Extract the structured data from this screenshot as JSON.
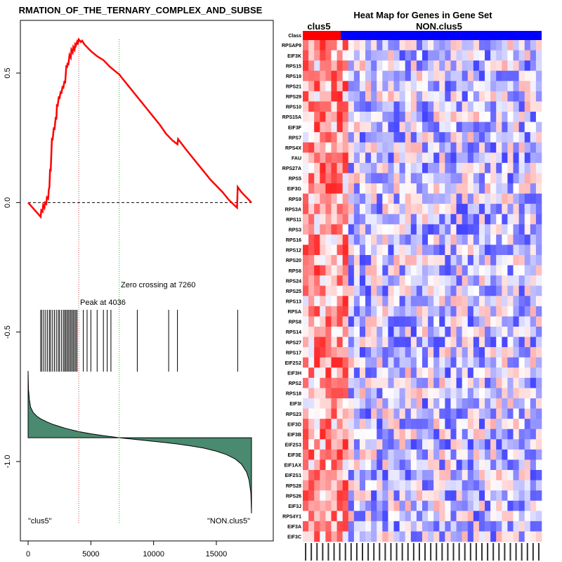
{
  "chart_data": [
    {
      "type": "line",
      "name": "enrichment-plot",
      "title": "RMATION_OF_THE_TERNARY_COMPLEX_AND_SUBSE",
      "xlabel": "",
      "ylabel": "",
      "xlim": [
        0,
        17800
      ],
      "ylim": [
        -1.25,
        0.66
      ],
      "xticks": [
        0,
        5000,
        10000,
        15000
      ],
      "xtick_labels": [
        "0",
        "5000",
        "10000",
        "15000"
      ],
      "yticks": [
        0.5,
        0.0,
        -0.5,
        -1.0
      ],
      "ytick_labels": [
        "0.5",
        "0.0",
        "-0.5",
        "-1.0"
      ],
      "enrichment_curve": {
        "x": [
          0,
          1000,
          1050,
          1150,
          1200,
          1300,
          1350,
          1450,
          1500,
          1600,
          1650,
          1700,
          1750,
          1800,
          1900,
          1950,
          2050,
          2100,
          2200,
          2250,
          2300,
          2350,
          2450,
          2500,
          2600,
          2650,
          2750,
          2800,
          2900,
          2950,
          3050,
          3100,
          3150,
          3200,
          3300,
          3400,
          3450,
          3550,
          3600,
          3700,
          3750,
          3800,
          3900,
          3950,
          4036,
          4200,
          4300,
          4500,
          4700,
          5000,
          5500,
          6000,
          6500,
          7000,
          7260,
          7500,
          8000,
          8500,
          9000,
          9500,
          10000,
          10500,
          11000,
          11500,
          11900,
          11950,
          12500,
          13000,
          13500,
          14000,
          14500,
          15000,
          15500,
          16000,
          16650,
          16700,
          17000,
          17800
        ],
        "y": [
          0.0,
          -0.055,
          -0.03,
          -0.035,
          -0.01,
          -0.02,
          0.0,
          -0.005,
          0.02,
          0.015,
          0.05,
          0.06,
          0.13,
          0.12,
          0.25,
          0.24,
          0.29,
          0.28,
          0.33,
          0.32,
          0.38,
          0.37,
          0.41,
          0.4,
          0.43,
          0.42,
          0.45,
          0.44,
          0.47,
          0.46,
          0.53,
          0.52,
          0.54,
          0.53,
          0.57,
          0.56,
          0.59,
          0.58,
          0.6,
          0.59,
          0.61,
          0.605,
          0.62,
          0.61,
          0.63,
          0.62,
          0.625,
          0.61,
          0.6,
          0.585,
          0.565,
          0.55,
          0.525,
          0.505,
          0.495,
          0.48,
          0.45,
          0.42,
          0.39,
          0.36,
          0.33,
          0.3,
          0.265,
          0.24,
          0.225,
          0.245,
          0.21,
          0.18,
          0.15,
          0.12,
          0.09,
          0.065,
          0.04,
          0.01,
          -0.02,
          0.06,
          0.04,
          0.0
        ],
        "color": "#ff0000"
      },
      "peak": {
        "x": 4036,
        "label": "Peak at 4036",
        "color": "#cc4444"
      },
      "zero_crossing": {
        "x": 7260,
        "label": "Zero crossing at 7260",
        "color": "#22bb22"
      },
      "hit_positions": [
        1000,
        1100,
        1250,
        1400,
        1550,
        1700,
        1800,
        1950,
        2100,
        2250,
        2400,
        2500,
        2650,
        2800,
        2900,
        3000,
        3100,
        3200,
        3300,
        3400,
        3500,
        3600,
        3700,
        3800,
        3900,
        4400,
        4700,
        5000,
        5500,
        6000,
        6300,
        6600,
        8700,
        11200,
        11900,
        16700
      ],
      "ranked_metric": {
        "x": [
          0,
          30,
          100,
          200,
          400,
          700,
          1000,
          1500,
          2000,
          3000,
          4000,
          5000,
          6000,
          7260,
          8000,
          9000,
          10000,
          11000,
          12000,
          13000,
          14000,
          15000,
          15800,
          16500,
          17000,
          17400,
          17600,
          17750,
          17800
        ],
        "y": [
          -0.65,
          -0.72,
          -0.76,
          -0.79,
          -0.81,
          -0.825,
          -0.835,
          -0.847,
          -0.857,
          -0.872,
          -0.884,
          -0.893,
          -0.9,
          -0.908,
          -0.912,
          -0.917,
          -0.922,
          -0.927,
          -0.933,
          -0.94,
          -0.948,
          -0.96,
          -0.973,
          -0.99,
          -1.01,
          -1.04,
          -1.07,
          -1.12,
          -1.2
        ],
        "baseline": -0.908,
        "color": "#4a8a70"
      },
      "left_label": "\"clus5\"",
      "right_label": "\"NON.clus5\""
    },
    {
      "type": "heatmap",
      "name": "gene-heatmap",
      "title": "Heat Map for Genes in Gene Set",
      "class_label": "Class",
      "groups": [
        {
          "name": "clus5",
          "columns": 8,
          "color": "#ff0000"
        },
        {
          "name": "NON.clus5",
          "columns": 34,
          "color": "#0000ff"
        }
      ],
      "genes": [
        "RPSAP9",
        "EIF3K",
        "RPS15",
        "RPS19",
        "RPS21",
        "RPS29",
        "RPS10",
        "RPS15A",
        "EIF3F",
        "RPS7",
        "RPS4X",
        "FAU",
        "RPS27A",
        "RPS5",
        "EIF3G",
        "RPS9",
        "RPS3A",
        "RPS11",
        "RPS3",
        "RPS16",
        "RPS12",
        "RPS20",
        "RPS6",
        "RPS24",
        "RPS25",
        "RPS13",
        "RPSA",
        "RPS8",
        "RPS14",
        "RPS27",
        "RPS17",
        "EIF2S2",
        "EIF3H",
        "RPS2",
        "RPS18",
        "EIF3I",
        "RPS23",
        "EIF3D",
        "EIF3B",
        "EIF2S3",
        "EIF3E",
        "EIF1AX",
        "EIF2S1",
        "RPS28",
        "RPS26",
        "EIF3J",
        "RPS4Y1",
        "EIF3A",
        "EIF3C"
      ],
      "color_scale": [
        "#0000ff",
        "#ffffff",
        "#ff0000"
      ]
    }
  ]
}
